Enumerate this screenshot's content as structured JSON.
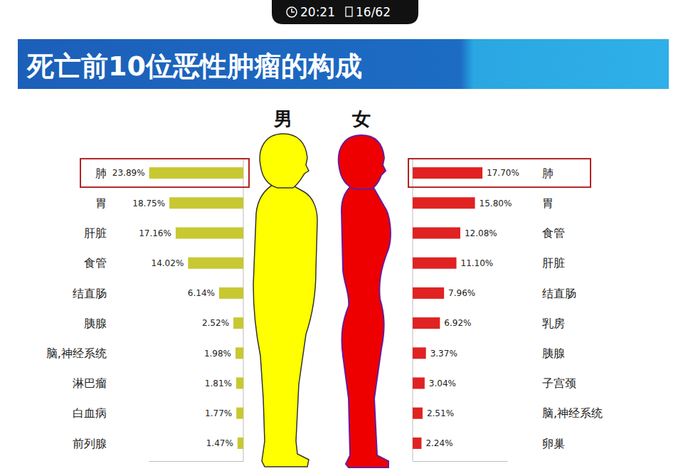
{
  "header": {
    "time": "20:21",
    "page": "16/62"
  },
  "title": "死亡前10位恶性肿瘤的构成",
  "chart_data": [
    {
      "type": "bar",
      "title": "男",
      "orientation": "horizontal",
      "categories": [
        "肺",
        "胃",
        "肝脏",
        "食管",
        "结直肠",
        "胰腺",
        "脑,神经系统",
        "淋巴瘤",
        "白血病",
        "前列腺"
      ],
      "values": [
        23.89,
        18.75,
        17.16,
        14.02,
        6.14,
        2.52,
        1.98,
        1.81,
        1.77,
        1.47
      ],
      "value_labels": [
        "23.89%",
        "18.75%",
        "17.16%",
        "14.02%",
        "6.14%",
        "2.52%",
        "1.98%",
        "1.81%",
        "1.77%",
        "1.47%"
      ],
      "color": "#c8c832",
      "xlim": [
        0,
        24
      ],
      "xticks": [],
      "data_labels": true,
      "tick_labels": "y"
    },
    {
      "type": "bar",
      "title": "女",
      "orientation": "horizontal",
      "categories": [
        "肺",
        "胃",
        "食管",
        "肝脏",
        "结直肠",
        "乳房",
        "胰腺",
        "子宫颈",
        "脑,神经系统",
        "卵巢"
      ],
      "values": [
        17.7,
        15.8,
        12.08,
        11.1,
        7.96,
        6.92,
        3.37,
        3.04,
        2.51,
        2.24
      ],
      "value_labels": [
        "17.70%",
        "15.80%",
        "12.08%",
        "11.10%",
        "7.96%",
        "6.92%",
        "3.37%",
        "3.04%",
        "2.51%",
        "2.24%"
      ],
      "color": "#e02222",
      "xlim": [
        0,
        24
      ],
      "xticks": [],
      "data_labels": true,
      "tick_labels": "y"
    }
  ]
}
